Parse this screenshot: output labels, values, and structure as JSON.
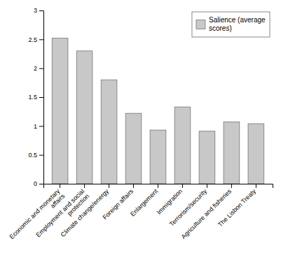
{
  "chart_data": {
    "type": "bar",
    "categories": [
      "Economic and monetary\naffairs",
      "Employment and social\nprotection",
      "Climate change/energy",
      "Foreign affairs",
      "Enlargement",
      "Immigration",
      "Terrorism/security",
      "Agriculture and fisheries",
      "The Lisbon Treaty"
    ],
    "series": [
      {
        "name": "Salience (average\nscores)",
        "color": "#c8c8c8",
        "values": [
          2.52,
          2.3,
          1.8,
          1.22,
          0.93,
          1.33,
          0.91,
          1.07,
          1.04
        ]
      }
    ],
    "ylim": [
      0,
      3
    ],
    "yticks": [
      0,
      0.5,
      1,
      1.5,
      2,
      2.5,
      3
    ],
    "grid": false,
    "legend": "upper-right"
  }
}
